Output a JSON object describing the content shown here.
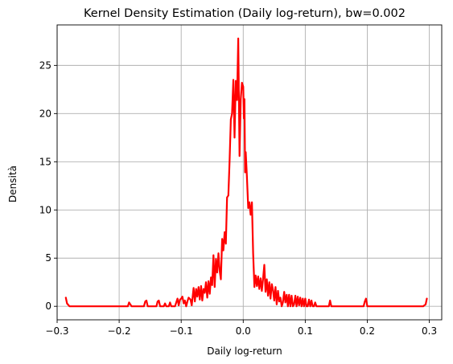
{
  "chart_data": {
    "type": "line",
    "title": "Kernel Density Estimation (Daily log-return), bw=0.002",
    "xlabel": "Daily log-return",
    "ylabel": "Densità",
    "xlim": [
      -0.3,
      0.32
    ],
    "ylim": [
      -1.4,
      29.2
    ],
    "xticks": [
      -0.3,
      -0.2,
      -0.1,
      0.0,
      0.1,
      0.2,
      0.3
    ],
    "xtick_labels": [
      "−0.3",
      "−0.2",
      "−0.1",
      "0.0",
      "0.1",
      "0.2",
      "0.3"
    ],
    "yticks": [
      0,
      5,
      10,
      15,
      20,
      25
    ],
    "ytick_labels": [
      "0",
      "5",
      "10",
      "15",
      "20",
      "25"
    ],
    "grid": true,
    "series": [
      {
        "color": "#ff0000",
        "x": [
          -0.286,
          -0.284,
          -0.28,
          -0.2,
          -0.186,
          -0.184,
          -0.182,
          -0.18,
          -0.16,
          -0.158,
          -0.156,
          -0.154,
          -0.14,
          -0.138,
          -0.136,
          -0.134,
          -0.128,
          -0.126,
          -0.124,
          -0.12,
          -0.118,
          -0.116,
          -0.114,
          -0.11,
          -0.106,
          -0.104,
          -0.102,
          -0.1,
          -0.098,
          -0.096,
          -0.094,
          -0.092,
          -0.09,
          -0.088,
          -0.085,
          -0.083,
          -0.08,
          -0.078,
          -0.076,
          -0.074,
          -0.072,
          -0.07,
          -0.068,
          -0.066,
          -0.064,
          -0.062,
          -0.06,
          -0.058,
          -0.056,
          -0.054,
          -0.052,
          -0.05,
          -0.048,
          -0.046,
          -0.044,
          -0.042,
          -0.04,
          -0.038,
          -0.036,
          -0.034,
          -0.032,
          -0.03,
          -0.028,
          -0.026,
          -0.024,
          -0.022,
          -0.02,
          -0.018,
          -0.016,
          -0.014,
          -0.012,
          -0.01,
          -0.008,
          -0.006,
          -0.004,
          -0.002,
          0.0,
          0.001,
          0.002,
          0.003,
          0.004,
          0.006,
          0.008,
          0.01,
          0.012,
          0.014,
          0.016,
          0.018,
          0.02,
          0.022,
          0.024,
          0.026,
          0.028,
          0.03,
          0.032,
          0.034,
          0.036,
          0.038,
          0.04,
          0.042,
          0.044,
          0.046,
          0.048,
          0.05,
          0.052,
          0.054,
          0.056,
          0.058,
          0.06,
          0.062,
          0.064,
          0.066,
          0.068,
          0.07,
          0.072,
          0.074,
          0.076,
          0.078,
          0.08,
          0.082,
          0.084,
          0.086,
          0.088,
          0.09,
          0.092,
          0.094,
          0.096,
          0.098,
          0.1,
          0.102,
          0.104,
          0.106,
          0.108,
          0.11,
          0.112,
          0.114,
          0.116,
          0.118,
          0.12,
          0.122,
          0.124,
          0.126,
          0.136,
          0.138,
          0.14,
          0.142,
          0.19,
          0.194,
          0.196,
          0.198,
          0.2,
          0.29,
          0.294,
          0.296
        ],
        "y": [
          0.9,
          0.3,
          0.0,
          0.0,
          0.0,
          0.4,
          0.2,
          0.0,
          0.0,
          0.5,
          0.6,
          0.0,
          0.0,
          0.5,
          0.6,
          0.0,
          0.0,
          0.3,
          0.0,
          0.0,
          0.4,
          0.0,
          0.0,
          0.0,
          0.8,
          0.1,
          0.7,
          0.8,
          1.0,
          0.3,
          0.6,
          0.0,
          0.5,
          0.9,
          0.7,
          0.1,
          1.9,
          0.5,
          1.8,
          1.0,
          2.0,
          0.7,
          2.1,
          0.6,
          1.8,
          1.4,
          2.5,
          0.9,
          2.6,
          1.3,
          3.0,
          2.2,
          5.3,
          2.0,
          4.9,
          3.5,
          5.5,
          3.7,
          2.8,
          7.0,
          5.8,
          7.7,
          6.5,
          11.3,
          11.5,
          15.0,
          19.4,
          20.0,
          23.5,
          17.5,
          23.4,
          21.4,
          27.8,
          15.6,
          21.5,
          23.2,
          22.8,
          19.5,
          21.5,
          13.9,
          16.0,
          13.4,
          10.2,
          10.8,
          9.5,
          10.8,
          5.5,
          2.0,
          3.2,
          2.1,
          3.1,
          1.8,
          2.9,
          1.6,
          2.9,
          4.3,
          1.5,
          2.8,
          1.1,
          2.5,
          0.8,
          2.3,
          1.7,
          0.6,
          2.0,
          0.2,
          1.6,
          0.5,
          0.9,
          0.0,
          0.4,
          1.5,
          0.4,
          1.2,
          0.0,
          1.2,
          0.0,
          1.1,
          0.0,
          0.2,
          1.1,
          0.0,
          1.0,
          0.1,
          0.9,
          0.0,
          0.8,
          0.0,
          0.8,
          0.0,
          0.0,
          0.7,
          0.0,
          0.6,
          0.0,
          0.0,
          0.4,
          0.0,
          0.0,
          0.0,
          0.0,
          0.0,
          0.0,
          0.0,
          0.6,
          0.0,
          0.0,
          0.0,
          0.5,
          0.8,
          0.0,
          0.0,
          0.2,
          0.8
        ]
      }
    ]
  }
}
